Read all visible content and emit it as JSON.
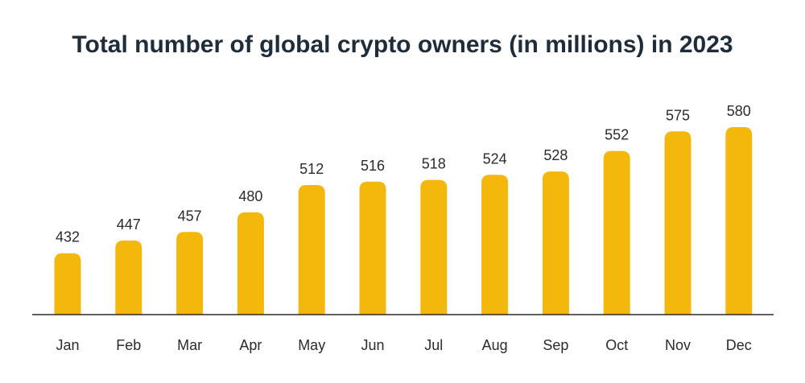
{
  "chart_data": {
    "type": "bar",
    "title": "Total number of global crypto owners (in millions) in 2023",
    "xlabel": "",
    "ylabel": "",
    "categories": [
      "Jan",
      "Feb",
      "Mar",
      "Apr",
      "May",
      "Jun",
      "Jul",
      "Aug",
      "Sep",
      "Oct",
      "Nov",
      "Dec"
    ],
    "values": [
      432,
      447,
      457,
      480,
      512,
      516,
      518,
      524,
      528,
      552,
      575,
      580
    ],
    "data_labels": [
      "432",
      "447",
      "457",
      "480",
      "512",
      "516",
      "518",
      "524",
      "528",
      "552",
      "575",
      "580"
    ],
    "ylim": [
      360,
      590
    ],
    "grid": false,
    "legend": "none",
    "colors": {
      "bar": "#F4B70B",
      "axis": "#2b2b2b",
      "title": "#1f2d3a",
      "text": "#2b2b2b"
    }
  }
}
